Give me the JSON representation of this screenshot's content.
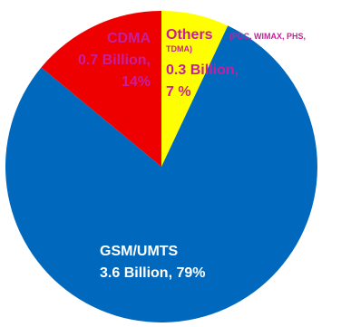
{
  "chart_data": {
    "type": "pie",
    "slices": [
      {
        "name": "GSM/UMTS",
        "billions": 3.6,
        "percent": 79,
        "color": "#0069BE"
      },
      {
        "name": "CDMA",
        "billions": 0.7,
        "percent": 14,
        "color": "#EE0000"
      },
      {
        "name": "Others",
        "billions": 0.3,
        "percent": 7,
        "color": "#FFFF00"
      }
    ],
    "labels": {
      "gsm": {
        "line1": "GSM/UMTS",
        "line2": "3.6 Billion, 79%",
        "color": "#FFFFFF"
      },
      "cdma": {
        "line1": "CDMA",
        "line2": "0.7 Billion,",
        "line3": "14%",
        "color": "#C81E9E"
      },
      "others": {
        "title": "Others",
        "note": "(PDC, WIMAX, PHS,",
        "note2": "TDMA)",
        "line2": "0.3 Billion,",
        "line3": "7 %",
        "color": "#C81E9E"
      }
    },
    "title": "",
    "legend": "none"
  }
}
